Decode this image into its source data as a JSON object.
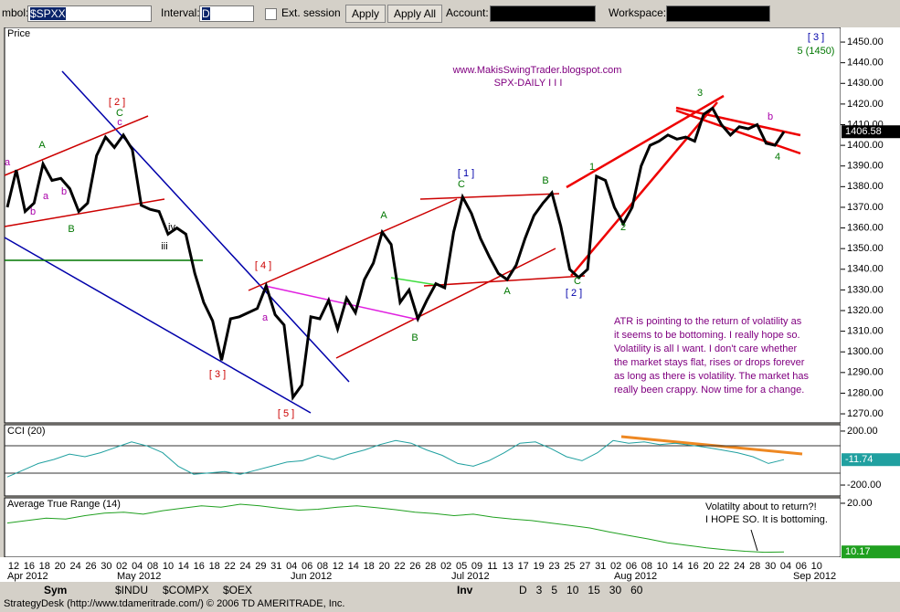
{
  "toolbar": {
    "symbol_label": "mbol:",
    "symbol": "$SPXX",
    "interval_label": "Interval:",
    "interval": "D",
    "ext_session": "Ext. session",
    "apply": "Apply",
    "apply_all": "Apply All",
    "account_label": "Account:",
    "workspace_label": "Workspace:"
  },
  "chart_data": {
    "type": "line",
    "title": "SPX-DAILY I I I",
    "subtitle": "www.MakisSwingTrader.blogspot.com",
    "panel_label": "Price",
    "color": "#000000",
    "values": [
      1370,
      1388,
      1368,
      1372,
      1391,
      1383,
      1384,
      1379,
      1368,
      1372,
      1395,
      1404,
      1399,
      1405,
      1398,
      1371,
      1369,
      1368,
      1357,
      1360,
      1357,
      1338,
      1324,
      1315,
      1296,
      1316,
      1317,
      1319,
      1321,
      1332,
      1318,
      1313,
      1278,
      1284,
      1317,
      1316,
      1325,
      1311,
      1326,
      1319,
      1335,
      1343,
      1358,
      1352,
      1324,
      1330,
      1316,
      1325,
      1333,
      1331,
      1358,
      1375,
      1367,
      1355,
      1346,
      1338,
      1335,
      1342,
      1355,
      1366,
      1372,
      1377,
      1361,
      1340,
      1336,
      1340,
      1385,
      1383,
      1370,
      1362,
      1370,
      1390,
      1400,
      1402,
      1405,
      1403,
      1404,
      1402,
      1415,
      1418,
      1410,
      1405,
      1409,
      1408,
      1410,
      1401,
      1400,
      1406.58
    ],
    "last": {
      "value": 1406.58,
      "label": "1406.58"
    },
    "ylim": [
      1265.6,
      1457.1
    ],
    "yticks": [
      {
        "value": 1270,
        "label": "1270.00"
      },
      {
        "value": 1280,
        "label": "1280.00"
      },
      {
        "value": 1290,
        "label": "1290.00"
      },
      {
        "value": 1300,
        "label": "1300.00"
      },
      {
        "value": 1310,
        "label": "1310.00"
      },
      {
        "value": 1320,
        "label": "1320.00"
      },
      {
        "value": 1330,
        "label": "1330.00"
      },
      {
        "value": 1340,
        "label": "1340.00"
      },
      {
        "value": 1350,
        "label": "1350.00"
      },
      {
        "value": 1360,
        "label": "1360.00"
      },
      {
        "value": 1370,
        "label": "1370.00"
      },
      {
        "value": 1380,
        "label": "1380.00"
      },
      {
        "value": 1390,
        "label": "1390.00"
      },
      {
        "value": 1400,
        "label": "1400.00"
      },
      {
        "value": 1410,
        "label": "1410.00"
      },
      {
        "value": 1420,
        "label": "1420.00"
      },
      {
        "value": 1430,
        "label": "1430.00"
      },
      {
        "value": 1440,
        "label": "1440.00"
      },
      {
        "value": 1450,
        "label": "1450.00"
      }
    ],
    "top_right": [
      "[ 3 ]",
      "5 (1450)"
    ],
    "annotations": [
      {
        "text": "[ 2 ]",
        "color": "#cc0000"
      },
      {
        "text": "C",
        "color": "#007700"
      },
      {
        "text": "c",
        "color": "#aa00aa"
      },
      {
        "text": "A",
        "color": "#007700"
      },
      {
        "text": "B",
        "color": "#007700"
      },
      {
        "text": "iii",
        "color": "#000000"
      },
      {
        "text": "iv",
        "color": "#000000"
      },
      {
        "text": "[ 3 ]",
        "color": "#cc0000"
      },
      {
        "text": "[ 4 ]",
        "color": "#cc0000"
      },
      {
        "text": "[ 5 ]",
        "color": "#cc0000"
      },
      {
        "text": "A",
        "color": "#007700"
      },
      {
        "text": "B",
        "color": "#007700"
      },
      {
        "text": "[ 1 ]",
        "color": "#0000aa"
      },
      {
        "text": "C",
        "color": "#007700"
      },
      {
        "text": "B",
        "color": "#007700"
      },
      {
        "text": "A",
        "color": "#007700"
      },
      {
        "text": "[ 2 ]",
        "color": "#0000aa"
      },
      {
        "text": "C",
        "color": "#007700"
      },
      {
        "text": "1",
        "color": "#007700"
      },
      {
        "text": "2",
        "color": "#007700"
      },
      {
        "text": "3",
        "color": "#007700"
      },
      {
        "text": "4",
        "color": "#007700"
      },
      {
        "text": "a",
        "color": "#aa00aa"
      },
      {
        "text": "b",
        "color": "#aa00aa"
      },
      {
        "text": "a",
        "color": "#aa00aa"
      },
      {
        "text": "b",
        "color": "#aa00aa"
      },
      {
        "text": "a",
        "color": "#aa00aa"
      },
      {
        "text": "b",
        "color": "#aa00aa"
      }
    ],
    "note": [
      "ATR is pointing to the return of volatility as",
      "it seems to be bottoming. I really hope so.",
      "Volatility is all I want. I don't care whether",
      "the market stays flat, rises or drops forever",
      "as long as there is volatility. The market has",
      "really been crappy. Now time for a change."
    ],
    "x_labels": [
      "12",
      "16",
      "18",
      "20",
      "24",
      "26",
      "30",
      "02",
      "04",
      "08",
      "10",
      "14",
      "16",
      "18",
      "22",
      "24",
      "29",
      "31",
      "04",
      "06",
      "08",
      "12",
      "14",
      "18",
      "20",
      "22",
      "26",
      "28",
      "02",
      "05",
      "09",
      "11",
      "13",
      "17",
      "19",
      "23",
      "25",
      "27",
      "31",
      "02",
      "06",
      "08",
      "10",
      "14",
      "16",
      "20",
      "22",
      "24",
      "28",
      "30",
      "04",
      "06",
      "10"
    ],
    "months": [
      "Apr 2012",
      "May 2012",
      "Jun 2012",
      "Jul 2012",
      "Aug 2012",
      "Sep 2012"
    ]
  },
  "cci": {
    "type": "line",
    "panel_label": "CCI (20)",
    "color": "#20a0a0",
    "values": [
      -140,
      -90,
      -40,
      -10,
      30,
      10,
      40,
      80,
      120,
      90,
      40,
      -60,
      -120,
      -110,
      -100,
      -120,
      -90,
      -60,
      -30,
      -20,
      20,
      -10,
      30,
      60,
      100,
      130,
      110,
      60,
      20,
      -40,
      -60,
      -20,
      40,
      110,
      120,
      70,
      10,
      -20,
      40,
      130,
      110,
      120,
      100,
      110,
      95,
      80,
      60,
      40,
      10,
      -40,
      -11.74
    ],
    "ylim": [
      -281,
      247
    ],
    "yticks": [
      {
        "value": 200,
        "label": "200.00"
      },
      {
        "value": -200,
        "label": "-200.00"
      }
    ],
    "last": {
      "value": -11.74,
      "label": "-11.74"
    }
  },
  "atr": {
    "type": "line",
    "panel_label": "Average True Range (14)",
    "color": "#20a020",
    "values": [
      16,
      16.5,
      17,
      16.8,
      17.5,
      18,
      18.2,
      17.8,
      18.5,
      19,
      19.5,
      19.2,
      19.8,
      19.5,
      19,
      18.6,
      18.8,
      19.2,
      19.5,
      19.1,
      18.7,
      18.2,
      17.9,
      17.5,
      17.8,
      17.2,
      16.8,
      16.5,
      16,
      15.5,
      15,
      14.2,
      13.5,
      12.8,
      12,
      11.5,
      11,
      10.6,
      10.3,
      10.1,
      10.17
    ],
    "ylim": [
      9.1,
      21.1
    ],
    "yticks": [
      {
        "value": 20,
        "label": "20.00"
      }
    ],
    "last": {
      "value": 10.17,
      "label": "10.17"
    },
    "note": [
      "Volatilty about to return?!",
      "I HOPE SO. It is bottoming."
    ]
  },
  "tabs": {
    "sym": "Sym",
    "sym_items": [
      "$INDU",
      "$COMPX",
      "$OEX"
    ],
    "inv": "Inv",
    "intervals": [
      "D",
      "3",
      "5",
      "10",
      "15",
      "30",
      "60"
    ]
  },
  "status": "StrategyDesk (http://www.tdameritrade.com/) © 2006 TD AMERITRADE, Inc."
}
